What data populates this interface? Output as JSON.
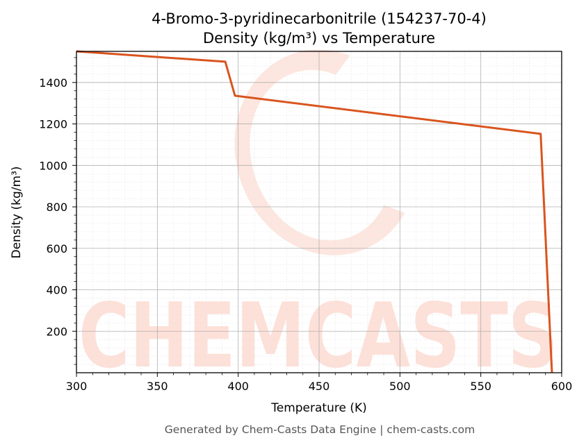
{
  "chart_data": {
    "type": "line",
    "title_line1": "4-Bromo-3-pyridinecarbonitrile (154237-70-4)",
    "title_line2": "Density (kg/m³) vs Temperature",
    "xlabel": "Temperature (K)",
    "ylabel": "Density (kg/m³)",
    "xlim": [
      300,
      600
    ],
    "ylim": [
      0,
      1550
    ],
    "xticks": [
      "300",
      "350",
      "400",
      "450",
      "500",
      "550",
      "600"
    ],
    "yticks": [
      "200",
      "400",
      "600",
      "800",
      "1000",
      "1200",
      "1400"
    ],
    "grid": true,
    "legend": "none",
    "series": [
      {
        "color": "#d9541e",
        "x": [
          300,
          392,
          398,
          587,
          594
        ],
        "y": [
          1550,
          1500,
          1336,
          1152,
          0
        ]
      }
    ]
  },
  "watermark": {
    "text": "CHEMCASTS",
    "color": "#fde0d8"
  },
  "footer": "Generated by Chem-Casts Data Engine | chem-casts.com"
}
